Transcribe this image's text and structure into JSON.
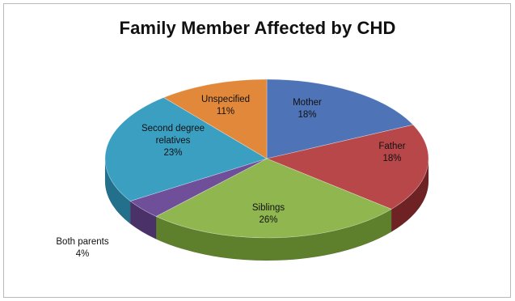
{
  "chart_data": {
    "type": "pie",
    "title": "Family Member Affected by CHD",
    "three_d": true,
    "legend": "none",
    "categories": [
      "Mother",
      "Father",
      "Siblings",
      "Both parents",
      "Second degree relatives",
      "Unspecified"
    ],
    "values": [
      18,
      18,
      26,
      4,
      23,
      11
    ],
    "data_labels": [
      {
        "name": [
          "Mother"
        ],
        "value": "18%"
      },
      {
        "name": [
          "Father"
        ],
        "value": "18%"
      },
      {
        "name": [
          "Siblings"
        ],
        "value": "26%"
      },
      {
        "name": [
          "Both parents"
        ],
        "value": "4%"
      },
      {
        "name": [
          "Second degree",
          "relatives"
        ],
        "value": "23%"
      },
      {
        "name": [
          "Unspecified"
        ],
        "value": "11%"
      }
    ],
    "colors": [
      "#4f73b7",
      "#b8474a",
      "#8fb64f",
      "#6f4f9a",
      "#3b9fc2",
      "#e1883a"
    ],
    "side_colors": [
      "#34508a",
      "#6e2224",
      "#5e7f2c",
      "#4a3168",
      "#23708d",
      "#a65d1d"
    ]
  }
}
